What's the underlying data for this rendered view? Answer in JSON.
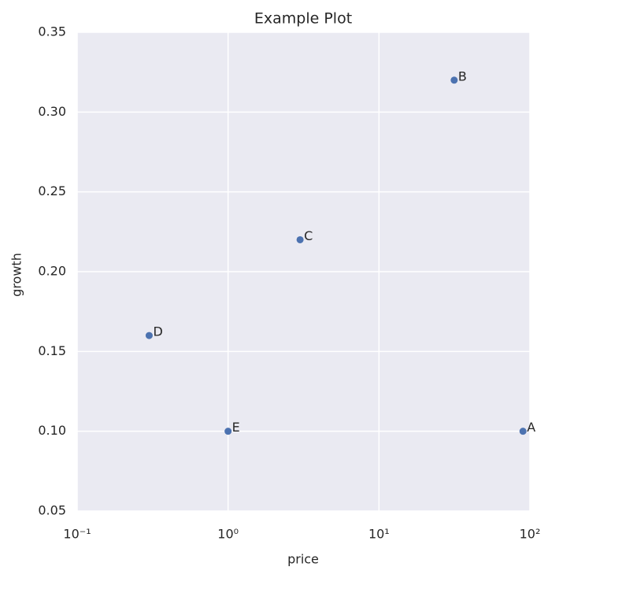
{
  "chart_data": {
    "type": "scatter",
    "title": "Example Plot",
    "x_label": "price",
    "y_label": "growth",
    "labels": [
      "A",
      "B",
      "C",
      "D",
      "E"
    ],
    "x": [
      90,
      31.5,
      3,
      0.3,
      1
    ],
    "values": [
      0.1,
      0.32,
      0.22,
      0.16,
      0.1
    ],
    "color": "#4c72b0",
    "xscale": "log",
    "xlim": [
      0.1,
      100
    ],
    "xticks": [
      {
        "value": 0.1,
        "label": "10⁻¹"
      },
      {
        "value": 1,
        "label": "10⁰"
      },
      {
        "value": 10,
        "label": "10¹"
      },
      {
        "value": 100,
        "label": "10²"
      }
    ],
    "ylim": [
      0.05,
      0.35
    ],
    "yticks": [
      0.05,
      {
        "value": 0.1,
        "label": "0.10"
      },
      0.15,
      {
        "value": 0.2,
        "label": "0.20"
      },
      0.25,
      {
        "value": 0.3,
        "label": "0.30"
      },
      0.35
    ],
    "grid": true
  }
}
